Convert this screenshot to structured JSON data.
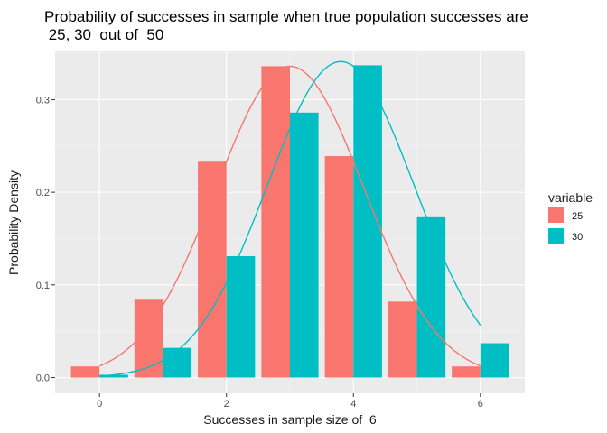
{
  "chart_data": {
    "type": "bar",
    "title_line1": "Probability of successes in sample when true population successes are",
    "title_line2": " 25, 30  out of  50",
    "xlabel": "Successes in sample size of  6",
    "ylabel": "Probability Density",
    "xlim": [
      -0.7,
      6.7
    ],
    "ylim": [
      -0.017,
      0.352
    ],
    "x_ticks": [
      0,
      2,
      4,
      6
    ],
    "y_ticks": [
      0.0,
      0.1,
      0.2,
      0.3
    ],
    "x_tick_labels": [
      "0",
      "2",
      "4",
      "6"
    ],
    "y_tick_labels": [
      "0.0",
      "0.1",
      "0.2",
      "0.3"
    ],
    "x": [
      0,
      1,
      2,
      3,
      4,
      5,
      6
    ],
    "bar_width": 0.9,
    "grid": true,
    "legend": {
      "title": "variable",
      "placement": "right"
    },
    "series": [
      {
        "name": "25",
        "color": "#F8766D",
        "values": [
          0.012,
          0.084,
          0.233,
          0.336,
          0.239,
          0.082,
          0.012
        ]
      },
      {
        "name": "30",
        "color": "#00BFC4",
        "values": [
          0.003,
          0.032,
          0.131,
          0.286,
          0.337,
          0.174,
          0.037
        ]
      }
    ],
    "density_curves": [
      {
        "series": "25",
        "peak_x": 3.0,
        "peak_y": 0.336,
        "sd": 1.17
      },
      {
        "series": "30",
        "peak_x": 3.8,
        "peak_y": 0.341,
        "sd": 1.16
      }
    ]
  }
}
